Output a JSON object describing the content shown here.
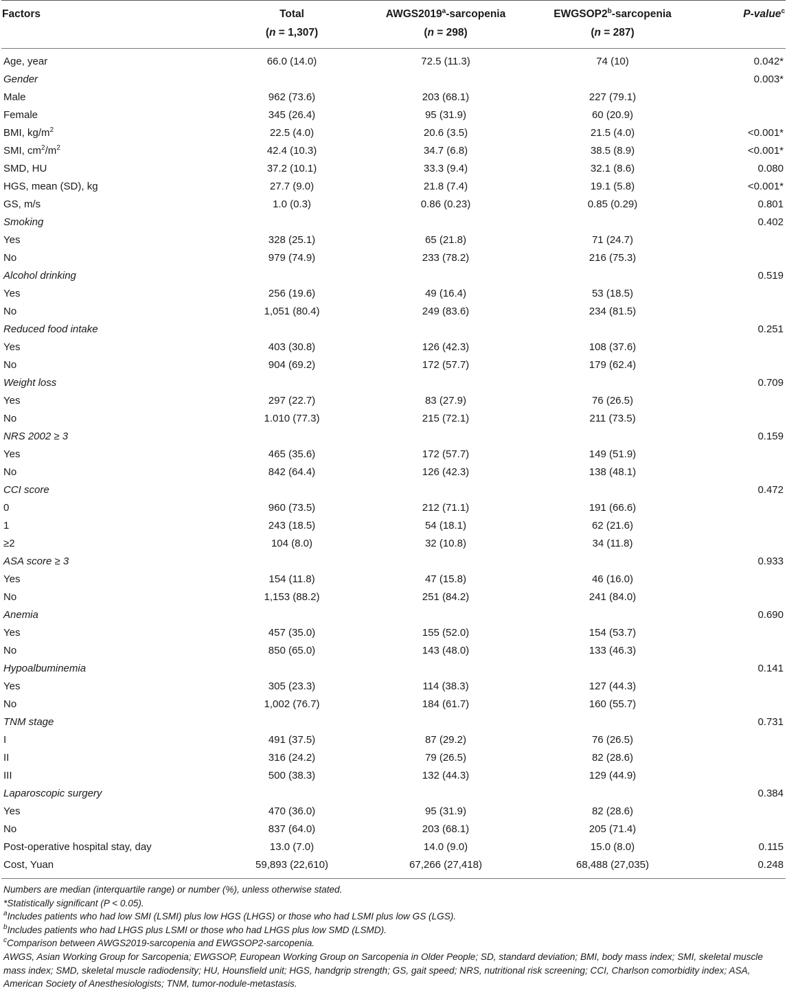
{
  "header": {
    "factors": "Factors",
    "total": "Total",
    "total_n": "(n = 1,307)",
    "awgs": "AWGS2019",
    "awgs_sup": "a",
    "awgs_suffix": "-sarcopenia",
    "awgs_n": "(n = 298)",
    "ewgsop": "EWGSOP2",
    "ewgsop_sup": "b",
    "ewgsop_suffix": "-sarcopenia",
    "ewgsop_n": "(n = 287)",
    "pvalue": "P-value",
    "pvalue_sup": "c"
  },
  "rows": [
    {
      "label": "Age, year",
      "italic": false,
      "total": "66.0 (14.0)",
      "awgs": "72.5 (11.3)",
      "ewgsop": "74 (10)",
      "p": "0.042*"
    },
    {
      "label": "Gender",
      "italic": true,
      "total": "",
      "awgs": "",
      "ewgsop": "",
      "p": "0.003*"
    },
    {
      "label": "Male",
      "italic": false,
      "total": "962 (73.6)",
      "awgs": "203 (68.1)",
      "ewgsop": "227 (79.1)",
      "p": ""
    },
    {
      "label": "Female",
      "italic": false,
      "total": "345 (26.4)",
      "awgs": "95 (31.9)",
      "ewgsop": "60 (20.9)",
      "p": ""
    },
    {
      "label": "BMI, kg/m",
      "sup": "2",
      "italic": false,
      "total": "22.5 (4.0)",
      "awgs": "20.6 (3.5)",
      "ewgsop": "21.5 (4.0)",
      "p": "<0.001*"
    },
    {
      "label": "SMI, cm",
      "sup": "2",
      "label_tail": "/m",
      "sup2": "2",
      "italic": false,
      "total": "42.4 (10.3)",
      "awgs": "34.7 (6.8)",
      "ewgsop": "38.5 (8.9)",
      "p": "<0.001*"
    },
    {
      "label": "SMD, HU",
      "italic": false,
      "total": "37.2 (10.1)",
      "awgs": "33.3 (9.4)",
      "ewgsop": "32.1 (8.6)",
      "p": "0.080"
    },
    {
      "label": "HGS, mean (SD), kg",
      "italic": false,
      "total": "27.7 (9.0)",
      "awgs": "21.8 (7.4)",
      "ewgsop": "19.1 (5.8)",
      "p": "<0.001*"
    },
    {
      "label": "GS, m/s",
      "italic": false,
      "total": "1.0 (0.3)",
      "awgs": "0.86 (0.23)",
      "ewgsop": "0.85 (0.29)",
      "p": "0.801"
    },
    {
      "label": "Smoking",
      "italic": true,
      "total": "",
      "awgs": "",
      "ewgsop": "",
      "p": "0.402"
    },
    {
      "label": "Yes",
      "italic": false,
      "total": "328 (25.1)",
      "awgs": "65 (21.8)",
      "ewgsop": "71 (24.7)",
      "p": ""
    },
    {
      "label": "No",
      "italic": false,
      "total": "979 (74.9)",
      "awgs": "233 (78.2)",
      "ewgsop": "216 (75.3)",
      "p": ""
    },
    {
      "label": "Alcohol drinking",
      "italic": true,
      "total": "",
      "awgs": "",
      "ewgsop": "",
      "p": "0.519"
    },
    {
      "label": "Yes",
      "italic": false,
      "total": "256 (19.6)",
      "awgs": "49 (16.4)",
      "ewgsop": "53 (18.5)",
      "p": ""
    },
    {
      "label": "No",
      "italic": false,
      "total": "1,051 (80.4)",
      "awgs": "249 (83.6)",
      "ewgsop": "234 (81.5)",
      "p": ""
    },
    {
      "label": "Reduced food intake",
      "italic": true,
      "total": "",
      "awgs": "",
      "ewgsop": "",
      "p": "0.251"
    },
    {
      "label": "Yes",
      "italic": false,
      "total": "403 (30.8)",
      "awgs": "126 (42.3)",
      "ewgsop": "108 (37.6)",
      "p": ""
    },
    {
      "label": "No",
      "italic": false,
      "total": "904 (69.2)",
      "awgs": "172 (57.7)",
      "ewgsop": "179 (62.4)",
      "p": ""
    },
    {
      "label": "Weight loss",
      "italic": true,
      "total": "",
      "awgs": "",
      "ewgsop": "",
      "p": "0.709"
    },
    {
      "label": "Yes",
      "italic": false,
      "total": "297 (22.7)",
      "awgs": "83 (27.9)",
      "ewgsop": "76 (26.5)",
      "p": ""
    },
    {
      "label": "No",
      "italic": false,
      "total": "1.010 (77.3)",
      "awgs": "215 (72.1)",
      "ewgsop": "211 (73.5)",
      "p": ""
    },
    {
      "label": "NRS 2002 ≥ 3",
      "italic": true,
      "total": "",
      "awgs": "",
      "ewgsop": "",
      "p": "0.159"
    },
    {
      "label": "Yes",
      "italic": false,
      "total": "465 (35.6)",
      "awgs": "172 (57.7)",
      "ewgsop": "149 (51.9)",
      "p": ""
    },
    {
      "label": "No",
      "italic": false,
      "total": "842 (64.4)",
      "awgs": "126 (42.3)",
      "ewgsop": "138 (48.1)",
      "p": ""
    },
    {
      "label": "CCI score",
      "italic": true,
      "total": "",
      "awgs": "",
      "ewgsop": "",
      "p": "0.472"
    },
    {
      "label": "0",
      "italic": false,
      "total": "960 (73.5)",
      "awgs": "212 (71.1)",
      "ewgsop": "191 (66.6)",
      "p": ""
    },
    {
      "label": "1",
      "italic": false,
      "total": "243 (18.5)",
      "awgs": "54 (18.1)",
      "ewgsop": "62 (21.6)",
      "p": ""
    },
    {
      "label": "≥2",
      "italic": false,
      "total": "104 (8.0)",
      "awgs": "32 (10.8)",
      "ewgsop": "34 (11.8)",
      "p": ""
    },
    {
      "label": "ASA score ≥ 3",
      "italic": true,
      "total": "",
      "awgs": "",
      "ewgsop": "",
      "p": "0.933"
    },
    {
      "label": "Yes",
      "italic": false,
      "total": "154 (11.8)",
      "awgs": "47 (15.8)",
      "ewgsop": "46 (16.0)",
      "p": ""
    },
    {
      "label": "No",
      "italic": false,
      "total": "1,153 (88.2)",
      "awgs": "251 (84.2)",
      "ewgsop": "241 (84.0)",
      "p": ""
    },
    {
      "label": "Anemia",
      "italic": true,
      "total": "",
      "awgs": "",
      "ewgsop": "",
      "p": "0.690"
    },
    {
      "label": "Yes",
      "italic": false,
      "total": "457 (35.0)",
      "awgs": "155 (52.0)",
      "ewgsop": "154 (53.7)",
      "p": ""
    },
    {
      "label": "No",
      "italic": false,
      "total": "850 (65.0)",
      "awgs": "143 (48.0)",
      "ewgsop": "133 (46.3)",
      "p": ""
    },
    {
      "label": "Hypoalbuminemia",
      "italic": true,
      "total": "",
      "awgs": "",
      "ewgsop": "",
      "p": "0.141"
    },
    {
      "label": "Yes",
      "italic": false,
      "total": "305 (23.3)",
      "awgs": "114 (38.3)",
      "ewgsop": "127 (44.3)",
      "p": ""
    },
    {
      "label": "No",
      "italic": false,
      "total": "1,002 (76.7)",
      "awgs": "184 (61.7)",
      "ewgsop": "160 (55.7)",
      "p": ""
    },
    {
      "label": "TNM stage",
      "italic": true,
      "total": "",
      "awgs": "",
      "ewgsop": "",
      "p": "0.731"
    },
    {
      "label": "I",
      "italic": false,
      "total": "491 (37.5)",
      "awgs": "87 (29.2)",
      "ewgsop": "76 (26.5)",
      "p": ""
    },
    {
      "label": "II",
      "italic": false,
      "total": "316 (24.2)",
      "awgs": "79 (26.5)",
      "ewgsop": "82 (28.6)",
      "p": ""
    },
    {
      "label": "III",
      "italic": false,
      "total": "500 (38.3)",
      "awgs": "132 (44.3)",
      "ewgsop": "129 (44.9)",
      "p": ""
    },
    {
      "label": "Laparoscopic surgery",
      "italic": true,
      "total": "",
      "awgs": "",
      "ewgsop": "",
      "p": "0.384"
    },
    {
      "label": "Yes",
      "italic": false,
      "total": "470 (36.0)",
      "awgs": "95 (31.9)",
      "ewgsop": "82 (28.6)",
      "p": ""
    },
    {
      "label": "No",
      "italic": false,
      "total": "837 (64.0)",
      "awgs": "203 (68.1)",
      "ewgsop": "205 (71.4)",
      "p": ""
    },
    {
      "label": "Post-operative hospital stay, day",
      "italic": false,
      "total": "13.0 (7.0)",
      "awgs": "14.0 (9.0)",
      "ewgsop": "15.0 (8.0)",
      "p": "0.115"
    },
    {
      "label": "Cost, Yuan",
      "italic": false,
      "total": "59,893 (22,610)",
      "awgs": "67,266 (27,418)",
      "ewgsop": "68,488 (27,035)",
      "p": "0.248"
    }
  ],
  "notes": {
    "n1": "Numbers are median (interquartile range) or number (%), unless otherwise stated.",
    "n2": "*Statistically significant (P < 0.05).",
    "n3_sup": "a",
    "n3": "Includes patients who had low SMI (LSMI) plus low HGS (LHGS) or those who had LSMI plus low GS (LGS).",
    "n4_sup": "b",
    "n4": "Includes patients who had LHGS plus LSMI or those who had LHGS plus low SMD (LSMD).",
    "n5_sup": "c",
    "n5": "Comparison between AWGS2019-sarcopenia and EWGSOP2-sarcopenia.",
    "n6": "AWGS, Asian Working Group for Sarcopenia; EWGSOP, European Working Group on Sarcopenia in Older People; SD, standard deviation; BMI, body mass index; SMI, skeletal muscle mass index; SMD, skeletal muscle radiodensity; HU, Hounsfield unit; HGS, handgrip strength; GS, gait speed; NRS, nutritional risk screening; CCI, Charlson comorbidity index; ASA, American Society of Anesthesiologists; TNM, tumor-nodule-metastasis."
  }
}
